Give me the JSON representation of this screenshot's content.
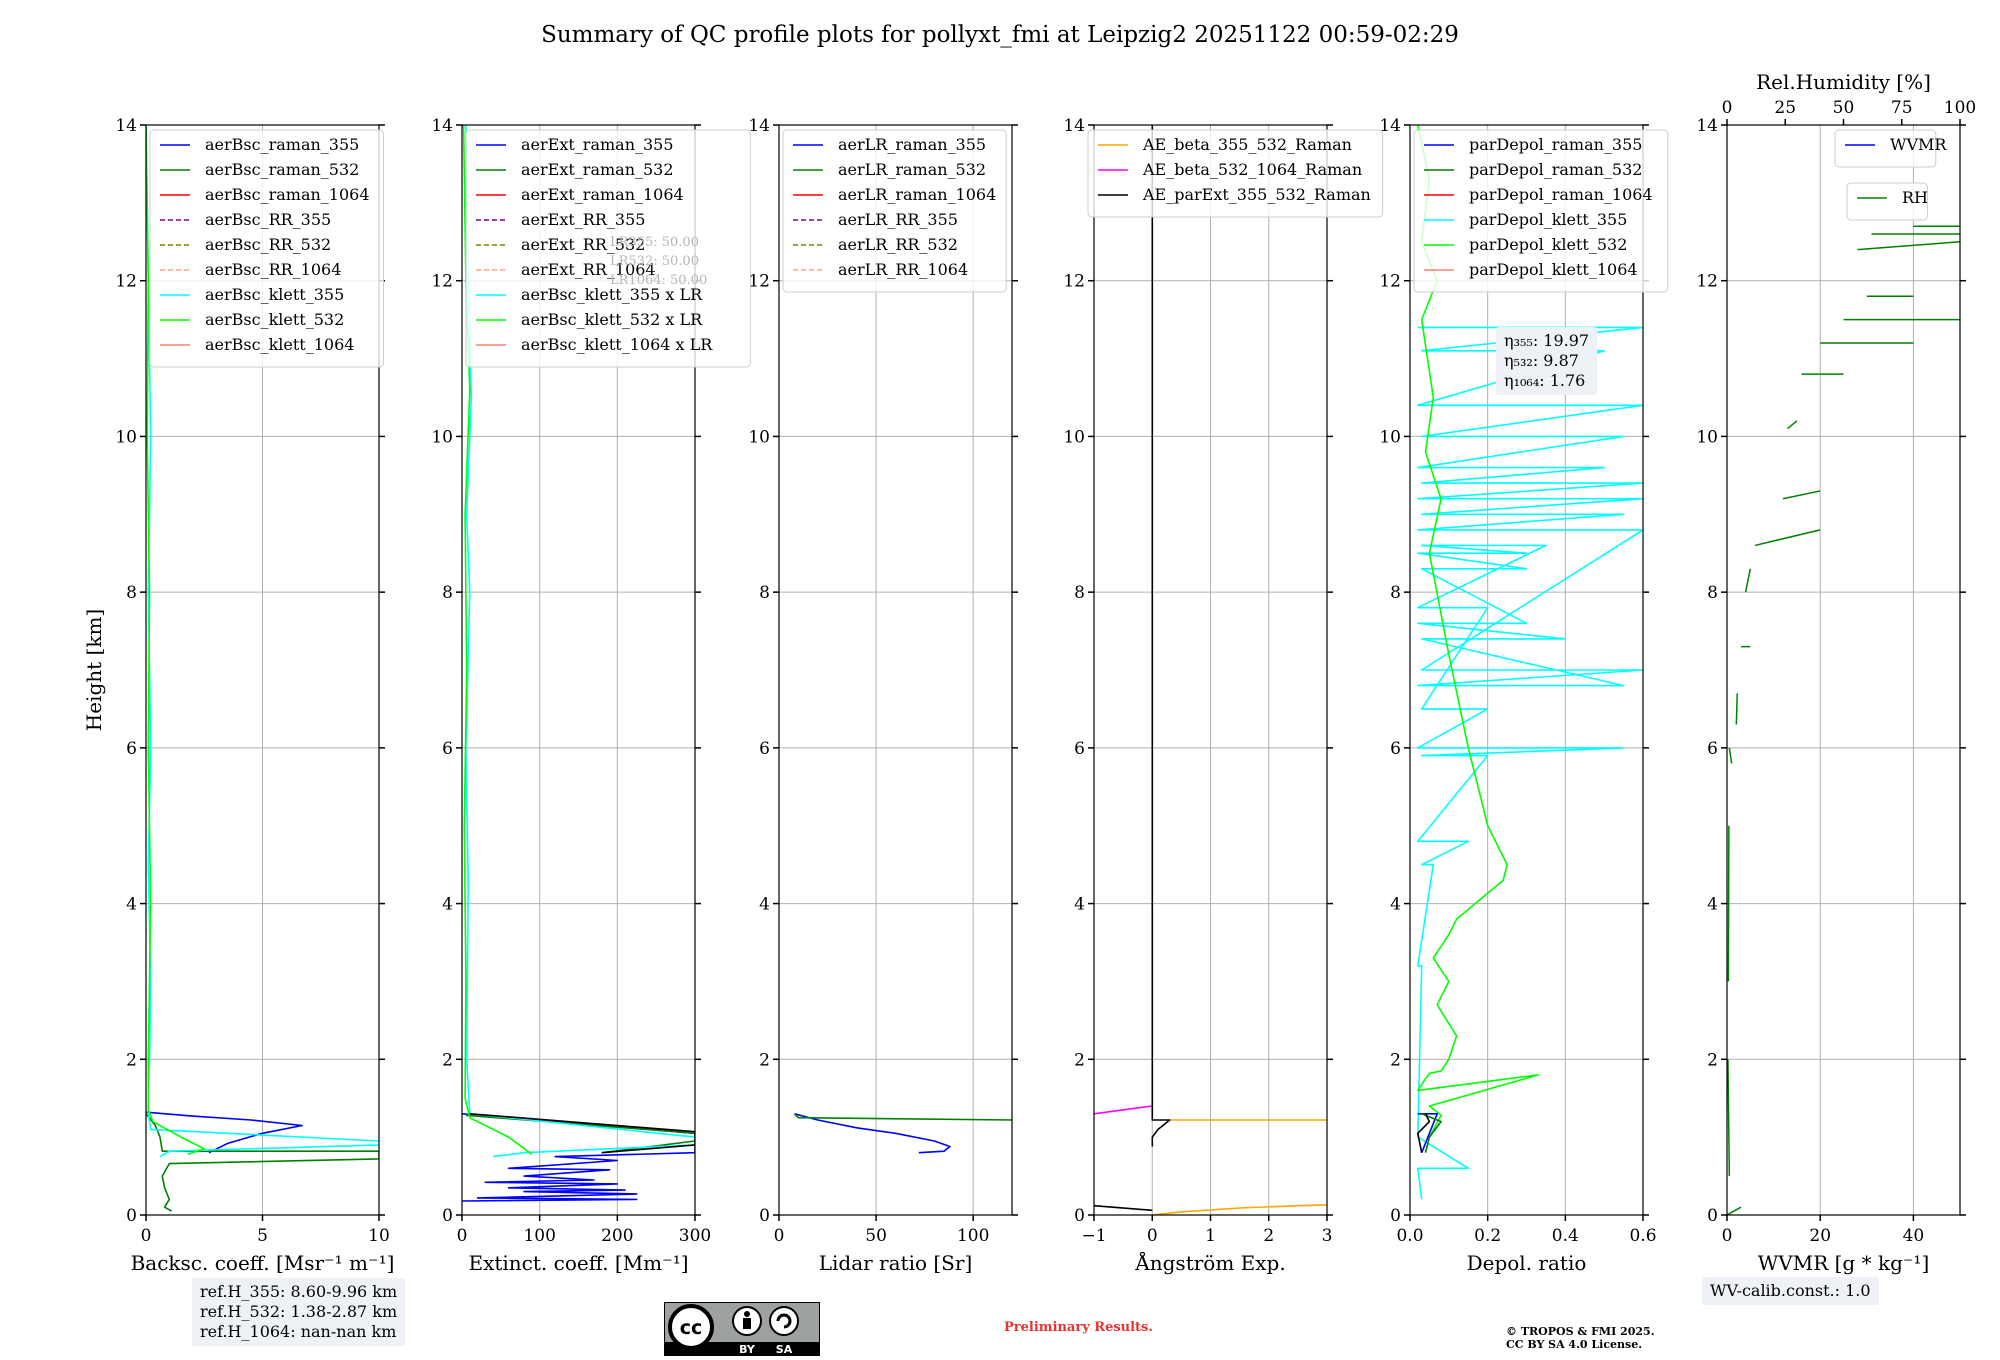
{
  "title": "Summary of QC profile plots for pollyxt_fmi at Leipzig2 20251122 00:59-02:29",
  "colors": {
    "blue": "#0000ff",
    "green": "#008000",
    "red": "#ff0000",
    "purple": "#800080",
    "olive": "#808000",
    "salmon": "#ffa07a",
    "cyan": "#00ffff",
    "lime": "#00ff00",
    "lightred": "#fa8072",
    "orange": "#ffa500",
    "magenta": "#ff00ff",
    "black": "#000000"
  },
  "chart_data": [
    {
      "type": "line",
      "id": "bsc",
      "xlabel": "Backsc. coeff. [Msr⁻¹ m⁻¹]",
      "ylabel": "Height [km]",
      "xlim": [
        0,
        10
      ],
      "ylim": [
        0,
        14
      ],
      "xticks": [
        "0",
        "5",
        "10"
      ],
      "yticks": [
        "0",
        "2",
        "4",
        "6",
        "8",
        "10",
        "12",
        "14"
      ],
      "legend": [
        "aerBsc_raman_355",
        "aerBsc_raman_532",
        "aerBsc_raman_1064",
        "aerBsc_RR_355",
        "aerBsc_RR_532",
        "aerBsc_RR_1064",
        "aerBsc_klett_355",
        "aerBsc_klett_532",
        "aerBsc_klett_1064"
      ],
      "legend_colors": [
        "blue",
        "green",
        "red",
        "purple",
        "olive",
        "salmon",
        "cyan",
        "lime",
        "lightred"
      ],
      "legend_dashed": [
        false,
        false,
        false,
        true,
        true,
        true,
        false,
        false,
        false
      ],
      "series": [
        {
          "name": "aerBsc_raman_355",
          "color": "blue",
          "x": [
            0,
            2,
            4.5,
            6.7,
            5,
            3.5,
            2.7
          ],
          "y": [
            1.32,
            1.27,
            1.22,
            1.15,
            1.05,
            0.92,
            0.8
          ]
        },
        {
          "name": "aerBsc_raman_532",
          "color": "green",
          "x": [
            0,
            0.4,
            0.6,
            0.7,
            10,
            10,
            1,
            0.7,
            0.8,
            1.0,
            0.8,
            1.1
          ],
          "y": [
            1.3,
            1.15,
            1.0,
            0.82,
            0.82,
            0.72,
            0.66,
            0.5,
            0.35,
            0.2,
            0.1,
            0.05
          ]
        },
        {
          "name": "aerBsc_klett_355",
          "color": "cyan",
          "x": [
            0,
            0.1,
            0.2,
            0.1,
            0.2,
            0.1,
            0.2,
            0.15,
            0.1,
            0.1,
            0.2,
            10,
            10,
            1.0,
            0.6
          ],
          "y": [
            14,
            12,
            10,
            8,
            6,
            4.5,
            3,
            2,
            1.6,
            1.3,
            1.1,
            0.95,
            0.9,
            0.82,
            0.75
          ]
        },
        {
          "name": "aerBsc_klett_532",
          "color": "lime",
          "x": [
            0,
            0.1,
            0.05,
            0.15,
            0.1,
            0.2,
            0.1,
            0.1,
            0.3,
            1.5,
            2.5,
            1.8
          ],
          "y": [
            14,
            12,
            10,
            8,
            6,
            4,
            2,
            1.35,
            1.2,
            1.0,
            0.85,
            0.78
          ]
        }
      ],
      "ann": [
        "ref.H_355: 8.60-9.96 km",
        "ref.H_532: 1.38-2.87 km",
        "ref.H_1064: nan-nan km"
      ]
    },
    {
      "type": "line",
      "id": "ext",
      "xlabel": "Extinct. coeff. [Mm⁻¹]",
      "ylabel": "",
      "xlim": [
        0,
        300
      ],
      "ylim": [
        0,
        14
      ],
      "xticks": [
        "0",
        "100",
        "200",
        "300"
      ],
      "yticks": [
        "0",
        "2",
        "4",
        "6",
        "8",
        "10",
        "12",
        "14"
      ],
      "legend": [
        "aerExt_raman_355",
        "aerExt_raman_532",
        "aerExt_raman_1064",
        "aerExt_RR_355",
        "aerExt_RR_532",
        "aerExt_RR_1064",
        "aerBsc_klett_355 x LR",
        "aerBsc_klett_532 x LR",
        "aerBsc_klett_1064 x LR"
      ],
      "legend_colors": [
        "blue",
        "green",
        "red",
        "purple",
        "olive",
        "salmon",
        "cyan",
        "lime",
        "lightred"
      ],
      "legend_dashed": [
        false,
        false,
        false,
        true,
        true,
        true,
        false,
        false,
        false
      ],
      "lr_labels": [
        "LR355: 50.00",
        "LR532: 50.00",
        "LR1064: 50.00"
      ],
      "series": [
        {
          "name": "aerExt_raman_355",
          "color": "blue",
          "x": [
            0,
            300,
            300,
            120,
            200,
            60,
            190,
            80,
            170,
            30,
            200,
            60,
            210,
            80,
            225,
            20,
            225,
            0
          ],
          "y": [
            1.3,
            1.05,
            0.8,
            0.75,
            0.7,
            0.6,
            0.58,
            0.5,
            0.45,
            0.42,
            0.4,
            0.35,
            0.32,
            0.3,
            0.27,
            0.22,
            0.2,
            0.18
          ]
        },
        {
          "name": "aerExt_raman_532",
          "color": "green",
          "x": [
            5,
            300,
            300,
            180
          ],
          "y": [
            1.28,
            1.05,
            0.95,
            0.8
          ]
        },
        {
          "name": "aerBsc_klett_355 x LR",
          "color": "cyan",
          "x": [
            5,
            8,
            12,
            6,
            10,
            5,
            8,
            6,
            10,
            300,
            300,
            80,
            40
          ],
          "y": [
            14,
            12,
            10.5,
            9,
            8,
            6,
            4.3,
            2,
            1.3,
            1.0,
            0.9,
            0.8,
            0.75
          ]
        },
        {
          "name": "aerBsc_klett_532 x LR",
          "color": "lime",
          "x": [
            2,
            5,
            10,
            4,
            6,
            3,
            5,
            4,
            10,
            60,
            90
          ],
          "y": [
            14,
            12,
            10.6,
            9,
            7,
            5,
            3,
            1.5,
            1.25,
            1.0,
            0.78
          ]
        },
        {
          "name": "ext_black",
          "color": "black",
          "x": [
            10,
            300,
            300,
            180
          ],
          "y": [
            1.3,
            1.07,
            0.9,
            0.8
          ]
        }
      ]
    },
    {
      "type": "line",
      "id": "lr",
      "xlabel": "Lidar ratio [Sr]",
      "ylabel": "",
      "xlim": [
        0,
        120
      ],
      "ylim": [
        0,
        14
      ],
      "xticks": [
        "0",
        "50",
        "100"
      ],
      "yticks": [
        "0",
        "2",
        "4",
        "6",
        "8",
        "10",
        "12",
        "14"
      ],
      "legend": [
        "aerLR_raman_355",
        "aerLR_raman_532",
        "aerLR_raman_1064",
        "aerLR_RR_355",
        "aerLR_RR_532",
        "aerLR_RR_1064"
      ],
      "legend_colors": [
        "blue",
        "green",
        "red",
        "purple",
        "olive",
        "salmon"
      ],
      "legend_dashed": [
        false,
        false,
        false,
        true,
        true,
        true
      ],
      "series": [
        {
          "name": "aerLR_raman_355",
          "color": "blue",
          "x": [
            8,
            20,
            40,
            60,
            80,
            88,
            85,
            72
          ],
          "y": [
            1.3,
            1.22,
            1.12,
            1.05,
            0.95,
            0.88,
            0.82,
            0.8
          ]
        },
        {
          "name": "aerLR_raman_532",
          "color": "green",
          "x": [
            8,
            10,
            120
          ],
          "y": [
            1.3,
            1.25,
            1.22
          ]
        }
      ]
    },
    {
      "type": "line",
      "id": "ae",
      "xlabel": "Ångström Exp.",
      "ylabel": "",
      "xlim": [
        -1,
        3
      ],
      "ylim": [
        0,
        14
      ],
      "xticks": [
        "−1",
        "0",
        "1",
        "2",
        "3"
      ],
      "yticks": [
        "0",
        "2",
        "4",
        "6",
        "8",
        "10",
        "12",
        "14"
      ],
      "legend": [
        "AE_beta_355_532_Raman",
        "AE_beta_532_1064_Raman",
        "AE_parExt_355_532_Raman"
      ],
      "legend_colors": [
        "orange",
        "magenta",
        "black"
      ],
      "legend_dashed": [
        false,
        false,
        false
      ],
      "series": [
        {
          "name": "AE_beta_355_532_Raman",
          "color": "orange",
          "x": [
            0.3,
            3
          ],
          "y": [
            1.22,
            1.22
          ]
        },
        {
          "name": "AE_beta_355_532_Raman_low",
          "color": "orange",
          "x": [
            0,
            0.5,
            1.5,
            2.5,
            3
          ],
          "y": [
            0,
            0.04,
            0.09,
            0.12,
            0.13
          ]
        },
        {
          "name": "AE_beta_532_1064_Raman",
          "color": "magenta",
          "x": [
            -1,
            0
          ],
          "y": [
            1.3,
            1.4
          ]
        },
        {
          "name": "AE_parExt_355_532_Raman",
          "color": "black",
          "x": [
            0,
            0,
            0.3,
            0.1,
            0,
            0
          ],
          "y": [
            14,
            1.22,
            1.22,
            1.1,
            1.0,
            0.88
          ]
        },
        {
          "name": "AE_parExt_low",
          "color": "black",
          "x": [
            -1,
            0
          ],
          "y": [
            0.12,
            0.06
          ]
        }
      ]
    },
    {
      "type": "line",
      "id": "depol",
      "xlabel": "Depol. ratio",
      "ylabel": "",
      "xlim": [
        0,
        0.6
      ],
      "ylim": [
        0,
        14
      ],
      "xticks": [
        "0.0",
        "0.2",
        "0.4",
        "0.6"
      ],
      "yticks": [
        "0",
        "2",
        "4",
        "6",
        "8",
        "10",
        "12",
        "14"
      ],
      "legend": [
        "parDepol_raman_355",
        "parDepol_raman_532",
        "parDepol_raman_1064",
        "parDepol_klett_355",
        "parDepol_klett_532",
        "parDepol_klett_1064"
      ],
      "legend_colors": [
        "blue",
        "green",
        "red",
        "cyan",
        "lime",
        "lightred"
      ],
      "legend_dashed": [
        false,
        false,
        false,
        false,
        false,
        false
      ],
      "eta_labels": [
        "η₃₅₅: 19.97",
        "η₅₃₂: 9.87",
        "η₁₀₆₄: 1.76"
      ],
      "series": [
        {
          "name": "parDepol_klett_355",
          "color": "cyan",
          "x": [
            0.02,
            0.6,
            0.03,
            0.5,
            0.02,
            0.6,
            0.03,
            0.55,
            0.02,
            0.5,
            0.03,
            0.6,
            0.02,
            0.6,
            0.03,
            0.55,
            0.02,
            0.6,
            0.03,
            0.6,
            0.02,
            0.55,
            0.03,
            0.4,
            0.02,
            0.3,
            0.03,
            0.3,
            0.02,
            0.3,
            0.03,
            0.35,
            0.02,
            0.2,
            0.03,
            0.2,
            0.02,
            0.55,
            0.03,
            0.2,
            0.02,
            0.15,
            0.03,
            0.06,
            0.02,
            0.03,
            0.02,
            0.15,
            0.02,
            0.03
          ],
          "y": [
            11.4,
            11.4,
            11.1,
            11.1,
            10.4,
            10.4,
            10.0,
            10.0,
            9.6,
            9.6,
            9.4,
            9.4,
            9.2,
            9.2,
            9.0,
            9.0,
            8.8,
            8.8,
            7.0,
            7.0,
            6.8,
            6.8,
            7.4,
            7.4,
            7.6,
            7.6,
            8.3,
            8.3,
            8.5,
            8.5,
            8.6,
            8.6,
            7.8,
            7.8,
            6.5,
            6.5,
            6.0,
            6.0,
            5.9,
            5.9,
            4.8,
            4.8,
            4.5,
            4.5,
            3.2,
            3.2,
            1.0,
            0.6,
            0.6,
            0.2
          ]
        },
        {
          "name": "parDepol_klett_532",
          "color": "lime",
          "x": [
            0.02,
            0.05,
            0.03,
            0.07,
            0.03,
            0.06,
            0.04,
            0.08,
            0.05,
            0.1,
            0.15,
            0.2,
            0.25,
            0.24,
            0.12,
            0.1,
            0.06,
            0.1,
            0.07,
            0.12,
            0.1,
            0.08,
            0.05,
            0.04,
            0.02,
            0.33,
            0.05,
            0.08,
            0.05
          ],
          "y": [
            14,
            13.3,
            12.5,
            12,
            11.5,
            10.5,
            9.8,
            9.2,
            8.5,
            7.2,
            6.0,
            5.0,
            4.5,
            4.3,
            3.8,
            3.6,
            3.3,
            3.0,
            2.7,
            2.3,
            2.0,
            1.85,
            1.82,
            1.75,
            1.6,
            1.8,
            1.4,
            1.28,
            1.0
          ]
        },
        {
          "name": "parDepol_raman_355",
          "color": "blue",
          "x": [
            0.02,
            0.07,
            0.03
          ],
          "y": [
            1.3,
            1.3,
            0.8
          ]
        },
        {
          "name": "parDepol_raman_532",
          "color": "green",
          "x": [
            0.03,
            0.08,
            0.05,
            0.04
          ],
          "y": [
            1.3,
            1.2,
            1.0,
            0.8
          ]
        },
        {
          "name": "parDepol_raman_1064",
          "color": "black",
          "x": [
            0.04,
            0.05,
            0.02,
            0.03
          ],
          "y": [
            1.3,
            1.2,
            1.05,
            0.8
          ]
        }
      ]
    },
    {
      "type": "line",
      "id": "wv",
      "xlabel": "WVMR [g * kg⁻¹]",
      "ylabel": "",
      "xlim": [
        0,
        50
      ],
      "ylim": [
        0,
        14
      ],
      "xticks": [
        "0",
        "20",
        "40"
      ],
      "yticks": [
        "0",
        "2",
        "4",
        "6",
        "8",
        "10",
        "12",
        "14"
      ],
      "top_label": "Rel.Humidity [%]",
      "top_ticks": [
        "0",
        "25",
        "50",
        "75",
        "100"
      ],
      "legend": [
        "WVMR"
      ],
      "legend_colors": [
        "blue"
      ],
      "legend_dashed": [
        false
      ],
      "legend2": [
        "RH"
      ],
      "legend2_colors": [
        "green"
      ],
      "wv_calib": "WV-calib.const.: 1.0",
      "series": [
        {
          "name": "RH",
          "color": "green",
          "segments": [
            [
              0,
              0.0,
              3,
              0.1
            ],
            [
              0.5,
              0.5,
              0.2,
              2.0
            ],
            [
              0.3,
              3.0,
              0.4,
              5.0
            ],
            [
              1,
              5.8,
              0.5,
              6.0
            ],
            [
              2,
              6.3,
              2.2,
              6.7
            ],
            [
              3,
              7.3,
              5,
              7.3
            ],
            [
              4,
              8.0,
              5,
              8.3
            ],
            [
              6,
              8.6,
              20,
              8.8
            ],
            [
              12,
              9.2,
              20,
              9.3
            ],
            [
              13,
              10.1,
              15,
              10.2
            ],
            [
              16,
              10.8,
              25,
              10.8
            ],
            [
              20,
              11.2,
              40,
              11.2
            ],
            [
              25,
              11.5,
              50,
              11.5
            ],
            [
              30,
              11.8,
              40,
              11.8
            ],
            [
              28,
              12.4,
              50,
              12.5
            ],
            [
              31,
              12.6,
              50,
              12.6
            ],
            [
              40,
              12.7,
              50,
              12.7
            ]
          ]
        }
      ]
    }
  ],
  "footer": {
    "preliminary": "Preliminary Results.",
    "copyright_1": "© TROPOS & FMI 2025.",
    "copyright_2": "CC BY SA 4.0 License.",
    "cc_by": "BY",
    "cc_sa": "SA"
  }
}
